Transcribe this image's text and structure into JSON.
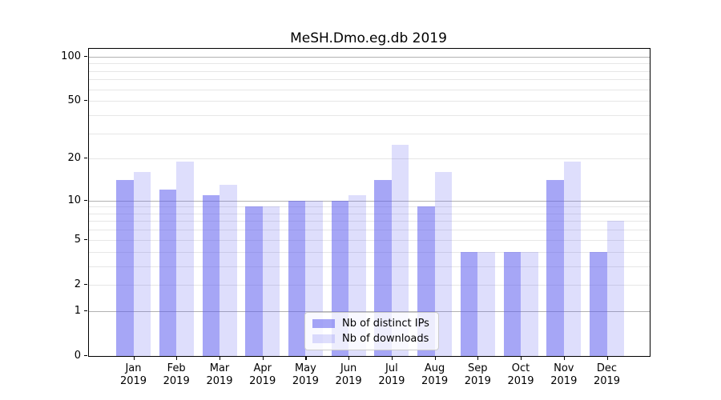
{
  "chart_data": {
    "type": "bar",
    "title": "MeSH.Dmo.eg.db 2019",
    "categories": [
      {
        "month": "Jan",
        "year": "2019"
      },
      {
        "month": "Feb",
        "year": "2019"
      },
      {
        "month": "Mar",
        "year": "2019"
      },
      {
        "month": "Apr",
        "year": "2019"
      },
      {
        "month": "May",
        "year": "2019"
      },
      {
        "month": "Jun",
        "year": "2019"
      },
      {
        "month": "Jul",
        "year": "2019"
      },
      {
        "month": "Aug",
        "year": "2019"
      },
      {
        "month": "Sep",
        "year": "2019"
      },
      {
        "month": "Oct",
        "year": "2019"
      },
      {
        "month": "Nov",
        "year": "2019"
      },
      {
        "month": "Dec",
        "year": "2019"
      }
    ],
    "series": [
      {
        "name": "Nb of distinct IPs",
        "color": "rgba(92, 92, 238, 0.55)",
        "values": [
          14,
          12,
          11,
          9,
          10,
          10,
          14,
          9,
          4,
          4,
          14,
          4
        ]
      },
      {
        "name": "Nb of downloads",
        "color": "rgba(92, 92, 238, 0.2)",
        "values": [
          16,
          19,
          13,
          9,
          10,
          11,
          25,
          16,
          4,
          4,
          19,
          7
        ]
      }
    ],
    "yscale": "log1p",
    "ylim": [
      0,
      113
    ],
    "y_tick_values": [
      0,
      1,
      2,
      5,
      10,
      20,
      50,
      100
    ],
    "y_gridlines_major": [
      1,
      10,
      100
    ],
    "y_gridlines_minor": [
      2,
      3,
      4,
      5,
      6,
      7,
      8,
      9,
      20,
      30,
      40,
      50,
      60,
      70,
      80,
      90
    ],
    "grid": true,
    "legend_position": "lower center",
    "xlabel": "",
    "ylabel": ""
  },
  "colors": {
    "grid_major": "#b2b2b2",
    "grid_minor": "#e7e7e7",
    "spine": "#000000",
    "background": "#ffffff"
  }
}
